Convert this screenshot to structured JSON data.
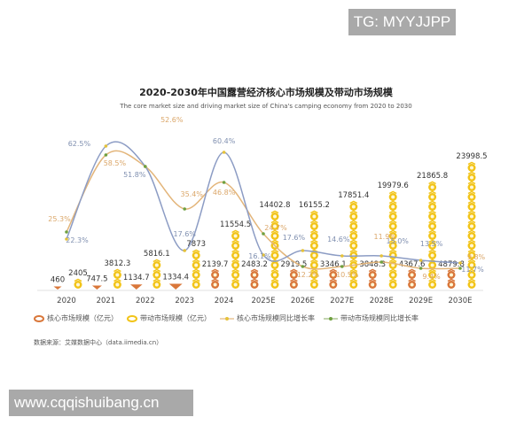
{
  "watermarks": {
    "top": "TG: MYYJJPP",
    "bottom": "www.cqqishuibang.cn"
  },
  "title": "2020-2030年中国露营经济核心市场规模及带动市场规模",
  "subtitle": "The core market size and driving market size of China's camping economy from 2020 to 2030",
  "legend": {
    "core_size": "核心市场规模（亿元）",
    "driving_size": "带动市场规模（亿元）",
    "core_growth": "核心市场规模同比增长率",
    "driving_growth": "带动市场规模同比增长率"
  },
  "source": "数据来源：艾媒数据中心（data.iimedia.cn）",
  "colors": {
    "core_bar": "#d9773a",
    "driving_bar": "#f2c418",
    "core_line": "#8c9cc4",
    "driving_line": "#e3b57a",
    "core_label": "#8090b0",
    "driving_label": "#dba76a"
  },
  "chart_data": {
    "type": "bar",
    "title": "2020-2030年中国露营经济核心市场规模及带动市场规模",
    "subtitle": "The core market size and driving market size of China's camping economy from 2020 to 2030",
    "xlabel": "",
    "ylabel": "",
    "categories": [
      "2020",
      "2021",
      "2022",
      "2023",
      "2024",
      "2025E",
      "2026E",
      "2027E",
      "2028E",
      "2029E",
      "2030E"
    ],
    "series": [
      {
        "name": "核心市场规模（亿元）",
        "type": "bar",
        "values": [
          460,
          747.5,
          1134.7,
          1334.4,
          2139.7,
          2483.2,
          2919.5,
          3346.1,
          3848.3,
          4367.6,
          4879.8
        ]
      },
      {
        "name": "带动市场规模（亿元）",
        "type": "bar",
        "values": [
          2405,
          3812.3,
          5816.1,
          7873,
          11554.5,
          14402.8,
          16155.2,
          17851.4,
          19979.6,
          21865.8,
          23998.5
        ]
      },
      {
        "name": "核心市场规模同比增长率",
        "type": "line",
        "unit": "%",
        "values": [
          22.3,
          62.5,
          51.8,
          17.6,
          60.4,
          16.1,
          17.6,
          14.6,
          15.0,
          13.5,
          11.7
        ]
      },
      {
        "name": "带动市场规模同比增长率",
        "type": "line",
        "unit": "%",
        "values": [
          25.3,
          58.5,
          52.6,
          35.4,
          46.8,
          24.7,
          12.2,
          10.5,
          11.9,
          9.4,
          9.8
        ]
      }
    ],
    "legend_position": "bottom",
    "grid": false
  }
}
